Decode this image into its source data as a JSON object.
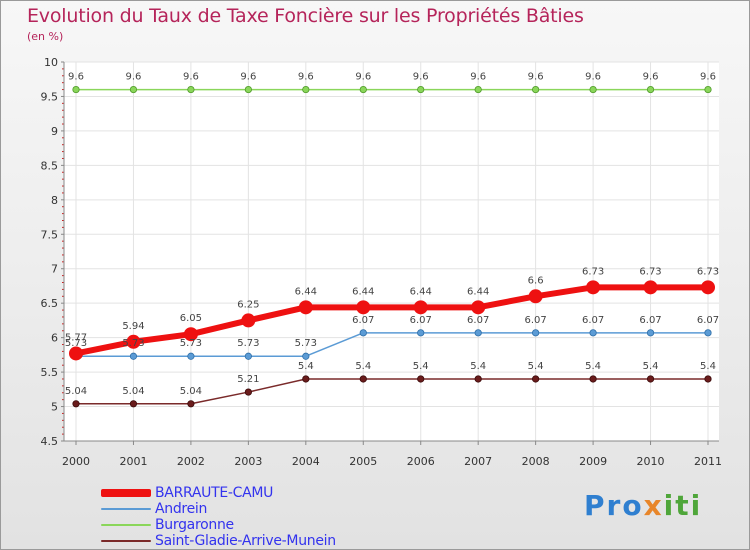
{
  "chart_data": {
    "type": "line",
    "title": "Evolution du Taux de Taxe Foncière sur les Propriétés Bâties",
    "subtitle": "(en %)",
    "xlabel": "",
    "ylabel": "",
    "ylim": [
      4.5,
      10
    ],
    "yticks": [
      "4.5",
      "5",
      "5.5",
      "6",
      "6.5",
      "7",
      "7.5",
      "8",
      "8.5",
      "9",
      "9.5",
      "10"
    ],
    "categories": [
      "2000",
      "2001",
      "2002",
      "2003",
      "2004",
      "2005",
      "2006",
      "2007",
      "2008",
      "2009",
      "2010",
      "2011"
    ],
    "grid": true,
    "legend_position": "bottom-left",
    "series": [
      {
        "name": "BARRAUTE-CAMU",
        "color": "#ee1111",
        "values": [
          5.77,
          5.94,
          6.05,
          6.25,
          6.44,
          6.44,
          6.44,
          6.44,
          6.6,
          6.73,
          6.73,
          6.73
        ],
        "labels": [
          "5.77",
          "5.94",
          "6.05",
          "6.25",
          "6.44",
          "6.44",
          "6.44",
          "6.44",
          "6.6",
          "6.73",
          "6.73",
          "6.73"
        ]
      },
      {
        "name": "Andrein",
        "color": "#5b9bd5",
        "values": [
          5.73,
          5.73,
          5.73,
          5.73,
          5.73,
          6.07,
          6.07,
          6.07,
          6.07,
          6.07,
          6.07,
          6.07
        ],
        "labels": [
          "5.73",
          "5.73",
          "5.73",
          "5.73",
          "5.73",
          "6.07",
          "6.07",
          "6.07",
          "6.07",
          "6.07",
          "6.07",
          "6.07"
        ]
      },
      {
        "name": "Burgaronne",
        "color": "#8ad65a",
        "values": [
          9.6,
          9.6,
          9.6,
          9.6,
          9.6,
          9.6,
          9.6,
          9.6,
          9.6,
          9.6,
          9.6,
          9.6
        ],
        "labels": [
          "9.6",
          "9.6",
          "9.6",
          "9.6",
          "9.6",
          "9.6",
          "9.6",
          "9.6",
          "9.6",
          "9.6",
          "9.6",
          "9.6"
        ]
      },
      {
        "name": "Saint-Gladie-Arrive-Munein",
        "color": "#7a2a2a",
        "values": [
          5.04,
          5.04,
          5.04,
          5.21,
          5.4,
          5.4,
          5.4,
          5.4,
          5.4,
          5.4,
          5.4,
          5.4
        ],
        "labels": [
          "5.04",
          "5.04",
          "5.04",
          "5.21",
          "5.4",
          "5.4",
          "5.4",
          "5.4",
          "5.4",
          "5.4",
          "5.4",
          "5.4"
        ]
      }
    ]
  },
  "logo": {
    "part1": "Pro",
    "part2": "x",
    "part3": "iti"
  }
}
